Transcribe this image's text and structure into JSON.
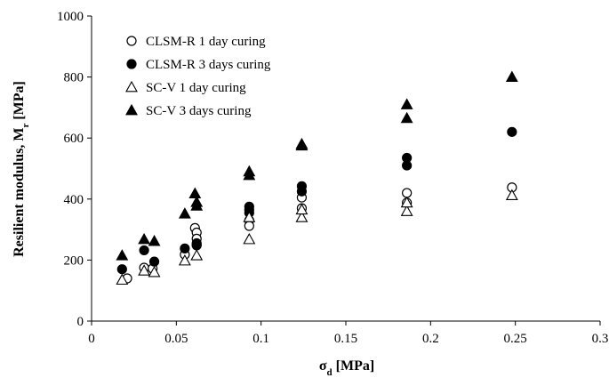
{
  "chart_data": {
    "type": "scatter",
    "title": "",
    "xlabel": "σ",
    "xlabel_sub": "d",
    "xlabel_unit": " [MPa]",
    "ylabel": "Resilient modulus, M",
    "ylabel_sub": "r",
    "ylabel_unit": " [MPa]",
    "xlim": [
      0,
      0.3
    ],
    "ylim": [
      0,
      1000
    ],
    "xticks": [
      "0",
      "0.05",
      "0.1",
      "0.15",
      "0.2",
      "0.25",
      "0.3"
    ],
    "yticks": [
      "0",
      "200",
      "400",
      "600",
      "800",
      "1000"
    ],
    "grid": false,
    "legend_position": "top-left",
    "series": [
      {
        "name": "CLSM-R 1 day curing",
        "marker": "circle-open",
        "color": "#000000",
        "points": [
          {
            "x": 0.021,
            "y": 140
          },
          {
            "x": 0.031,
            "y": 175
          },
          {
            "x": 0.036,
            "y": 172
          },
          {
            "x": 0.055,
            "y": 218
          },
          {
            "x": 0.061,
            "y": 305
          },
          {
            "x": 0.062,
            "y": 290
          },
          {
            "x": 0.062,
            "y": 270
          },
          {
            "x": 0.062,
            "y": 248
          },
          {
            "x": 0.093,
            "y": 330
          },
          {
            "x": 0.093,
            "y": 312
          },
          {
            "x": 0.124,
            "y": 405
          },
          {
            "x": 0.124,
            "y": 370
          },
          {
            "x": 0.186,
            "y": 420
          },
          {
            "x": 0.186,
            "y": 388
          },
          {
            "x": 0.248,
            "y": 438
          }
        ]
      },
      {
        "name": "CLSM-R 3 days curing",
        "marker": "circle-filled",
        "color": "#000000",
        "points": [
          {
            "x": 0.018,
            "y": 170
          },
          {
            "x": 0.031,
            "y": 232
          },
          {
            "x": 0.037,
            "y": 195
          },
          {
            "x": 0.055,
            "y": 238
          },
          {
            "x": 0.062,
            "y": 255
          },
          {
            "x": 0.062,
            "y": 250
          },
          {
            "x": 0.093,
            "y": 375
          },
          {
            "x": 0.093,
            "y": 365
          },
          {
            "x": 0.093,
            "y": 355
          },
          {
            "x": 0.124,
            "y": 442
          },
          {
            "x": 0.124,
            "y": 425
          },
          {
            "x": 0.186,
            "y": 535
          },
          {
            "x": 0.186,
            "y": 510
          },
          {
            "x": 0.248,
            "y": 620
          }
        ]
      },
      {
        "name": "SC-V 1 day curing",
        "marker": "triangle-open",
        "color": "#000000",
        "points": [
          {
            "x": 0.018,
            "y": 135
          },
          {
            "x": 0.031,
            "y": 165
          },
          {
            "x": 0.037,
            "y": 160
          },
          {
            "x": 0.055,
            "y": 198
          },
          {
            "x": 0.062,
            "y": 215
          },
          {
            "x": 0.093,
            "y": 268
          },
          {
            "x": 0.093,
            "y": 340
          },
          {
            "x": 0.124,
            "y": 340
          },
          {
            "x": 0.124,
            "y": 365
          },
          {
            "x": 0.186,
            "y": 360
          },
          {
            "x": 0.186,
            "y": 388
          },
          {
            "x": 0.248,
            "y": 412
          }
        ]
      },
      {
        "name": "SC-V 3 days curing",
        "marker": "triangle-filled",
        "color": "#000000",
        "points": [
          {
            "x": 0.018,
            "y": 215
          },
          {
            "x": 0.031,
            "y": 268
          },
          {
            "x": 0.037,
            "y": 262
          },
          {
            "x": 0.055,
            "y": 352
          },
          {
            "x": 0.061,
            "y": 418
          },
          {
            "x": 0.062,
            "y": 390
          },
          {
            "x": 0.062,
            "y": 378
          },
          {
            "x": 0.093,
            "y": 490
          },
          {
            "x": 0.093,
            "y": 478
          },
          {
            "x": 0.124,
            "y": 580
          },
          {
            "x": 0.124,
            "y": 575
          },
          {
            "x": 0.186,
            "y": 710
          },
          {
            "x": 0.186,
            "y": 665
          },
          {
            "x": 0.248,
            "y": 800
          }
        ]
      }
    ]
  }
}
